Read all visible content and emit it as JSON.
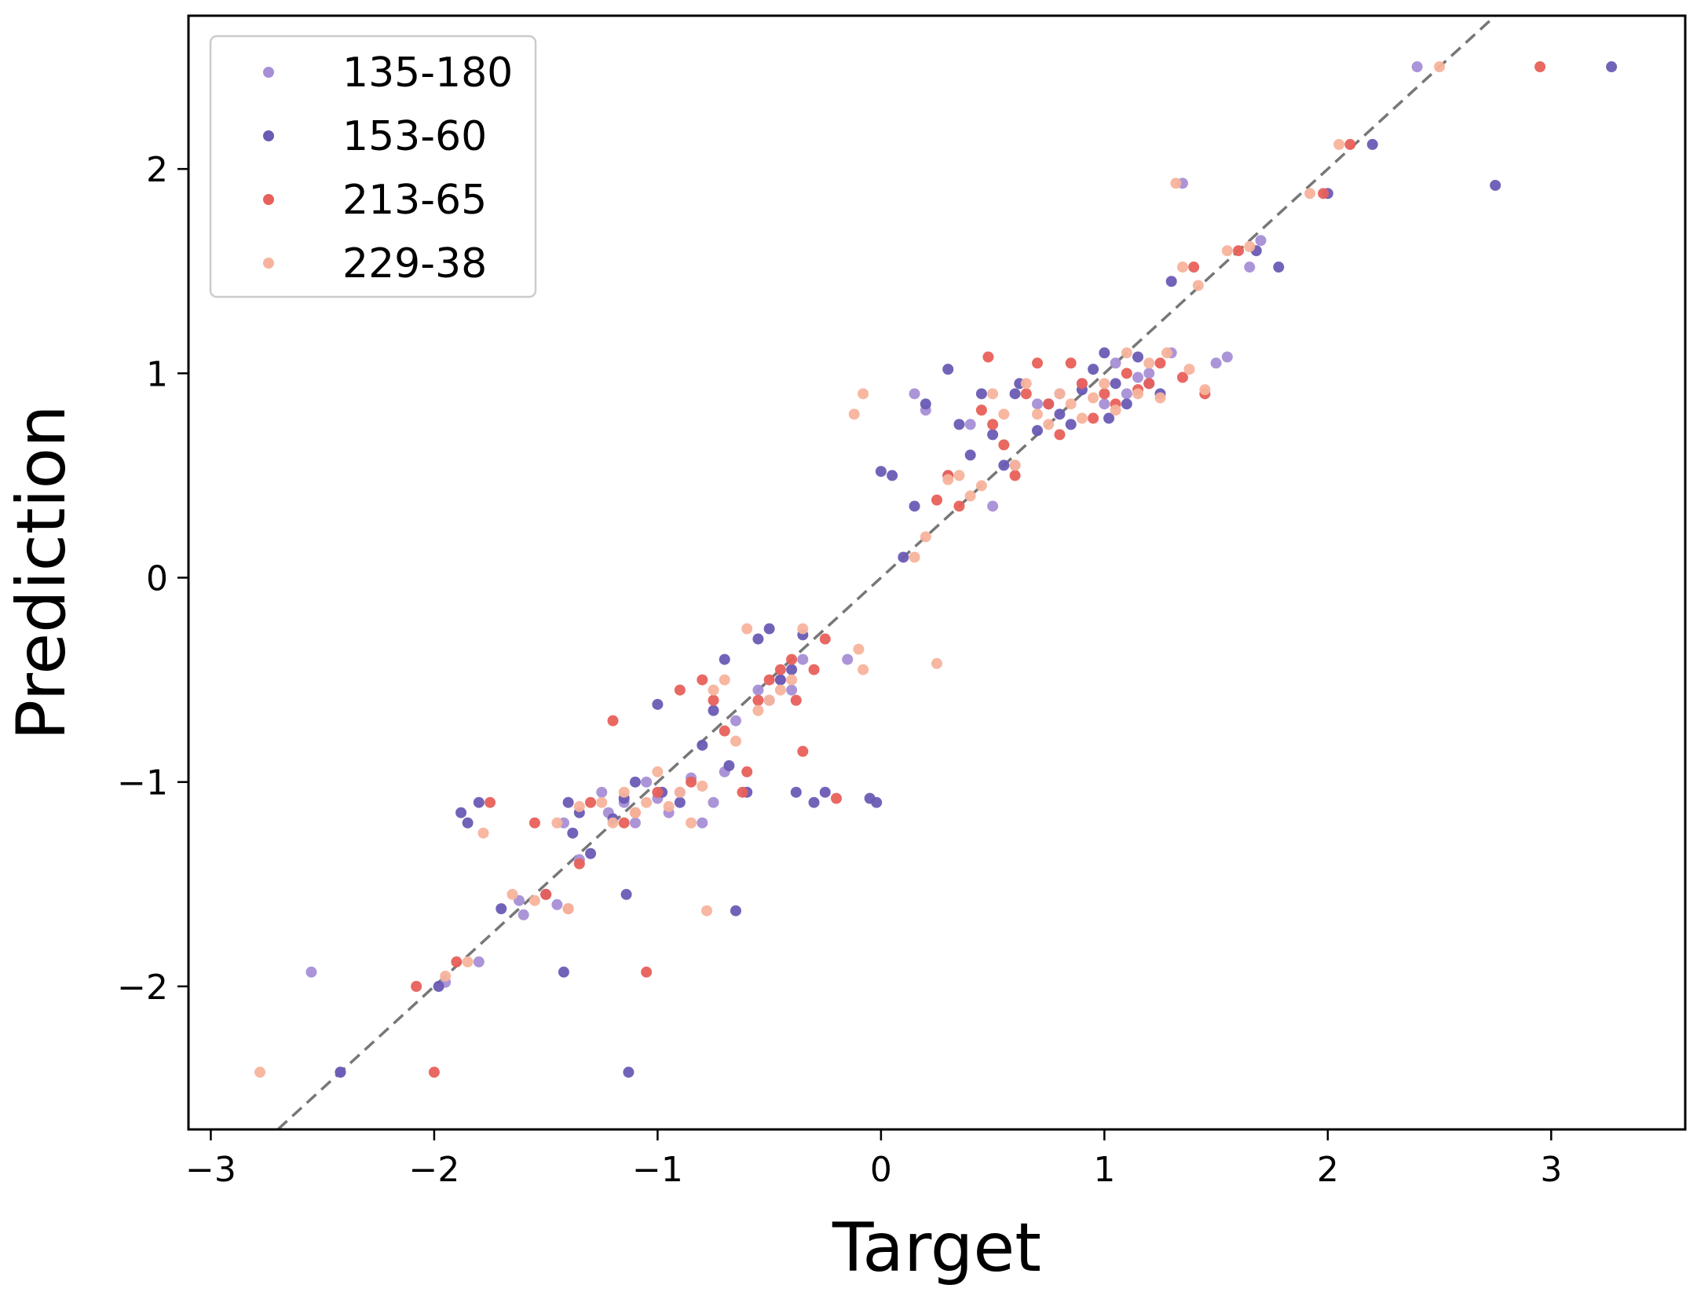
{
  "chart_data": {
    "type": "scatter",
    "title": "",
    "xlabel": "Target",
    "ylabel": "Prediction",
    "xlim": [
      -3.1,
      3.6
    ],
    "ylim": [
      -2.7,
      2.75
    ],
    "xticks": [
      -3,
      -2,
      -1,
      0,
      1,
      2,
      3
    ],
    "yticks": [
      -2,
      -1,
      0,
      1,
      2
    ],
    "xtick_labels": [
      "−3",
      "−2",
      "−1",
      "0",
      "1",
      "2",
      "3"
    ],
    "ytick_labels": [
      "−2",
      "−1",
      "0",
      "1",
      "2"
    ],
    "grid": false,
    "legend": "top-left",
    "reference_line": {
      "style": "dashed",
      "color": "#777777",
      "from": [
        -2.7,
        -2.7
      ],
      "to": [
        2.75,
        2.75
      ]
    },
    "series": [
      {
        "name": "135-180",
        "color": "#A78FD6",
        "points": [
          [
            -2.55,
            -1.93
          ],
          [
            -2.42,
            -2.42
          ],
          [
            -1.95,
            -1.98
          ],
          [
            -1.8,
            -1.88
          ],
          [
            -1.62,
            -1.58
          ],
          [
            -1.6,
            -1.65
          ],
          [
            -1.45,
            -1.6
          ],
          [
            -1.42,
            -1.2
          ],
          [
            -1.35,
            -1.38
          ],
          [
            -1.25,
            -1.05
          ],
          [
            -1.22,
            -1.15
          ],
          [
            -1.15,
            -1.1
          ],
          [
            -1.1,
            -1.2
          ],
          [
            -1.05,
            -1.0
          ],
          [
            -1.0,
            -1.08
          ],
          [
            -0.95,
            -1.15
          ],
          [
            -0.9,
            -1.05
          ],
          [
            -0.85,
            -0.98
          ],
          [
            -0.8,
            -1.2
          ],
          [
            -0.75,
            -1.1
          ],
          [
            -0.7,
            -0.95
          ],
          [
            -0.65,
            -0.7
          ],
          [
            -0.55,
            -0.55
          ],
          [
            -0.5,
            -0.6
          ],
          [
            -0.45,
            -0.5
          ],
          [
            -0.4,
            -0.55
          ],
          [
            -0.35,
            -0.4
          ],
          [
            -0.15,
            -0.4
          ],
          [
            0.15,
            0.9
          ],
          [
            0.2,
            0.82
          ],
          [
            0.3,
            0.5
          ],
          [
            0.4,
            0.75
          ],
          [
            0.5,
            0.35
          ],
          [
            0.6,
            0.55
          ],
          [
            0.7,
            0.85
          ],
          [
            0.8,
            0.9
          ],
          [
            0.9,
            0.95
          ],
          [
            1.0,
            0.85
          ],
          [
            1.05,
            1.05
          ],
          [
            1.1,
            0.9
          ],
          [
            1.15,
            0.98
          ],
          [
            1.2,
            1.0
          ],
          [
            1.3,
            1.1
          ],
          [
            1.5,
            1.05
          ],
          [
            1.55,
            1.08
          ],
          [
            1.65,
            1.52
          ],
          [
            1.7,
            1.65
          ],
          [
            1.35,
            1.93
          ],
          [
            2.4,
            2.5
          ]
        ]
      },
      {
        "name": "153-60",
        "color": "#6A5BB5",
        "points": [
          [
            -2.42,
            -2.42
          ],
          [
            -1.98,
            -2.0
          ],
          [
            -1.88,
            -1.15
          ],
          [
            -1.85,
            -1.2
          ],
          [
            -1.8,
            -1.1
          ],
          [
            -1.7,
            -1.62
          ],
          [
            -1.5,
            -1.55
          ],
          [
            -1.42,
            -1.93
          ],
          [
            -1.4,
            -1.1
          ],
          [
            -1.38,
            -1.25
          ],
          [
            -1.35,
            -1.15
          ],
          [
            -1.3,
            -1.35
          ],
          [
            -1.2,
            -1.18
          ],
          [
            -1.15,
            -1.08
          ],
          [
            -1.13,
            -2.42
          ],
          [
            -1.14,
            -1.55
          ],
          [
            -1.1,
            -1.0
          ],
          [
            -1.0,
            -0.62
          ],
          [
            -0.98,
            -1.05
          ],
          [
            -0.9,
            -1.1
          ],
          [
            -0.8,
            -0.82
          ],
          [
            -0.75,
            -0.65
          ],
          [
            -0.7,
            -0.4
          ],
          [
            -0.68,
            -0.92
          ],
          [
            -0.65,
            -1.63
          ],
          [
            -0.6,
            -1.05
          ],
          [
            -0.55,
            -0.3
          ],
          [
            -0.5,
            -0.25
          ],
          [
            -0.45,
            -0.5
          ],
          [
            -0.4,
            -0.45
          ],
          [
            -0.38,
            -1.05
          ],
          [
            -0.35,
            -0.28
          ],
          [
            -0.3,
            -1.1
          ],
          [
            -0.25,
            -1.05
          ],
          [
            -0.05,
            -1.08
          ],
          [
            -0.02,
            -1.1
          ],
          [
            0.0,
            0.52
          ],
          [
            0.05,
            0.5
          ],
          [
            0.1,
            0.1
          ],
          [
            0.15,
            0.35
          ],
          [
            0.2,
            0.85
          ],
          [
            0.3,
            1.02
          ],
          [
            0.35,
            0.75
          ],
          [
            0.4,
            0.6
          ],
          [
            0.45,
            0.9
          ],
          [
            0.5,
            0.7
          ],
          [
            0.55,
            0.55
          ],
          [
            0.6,
            0.9
          ],
          [
            0.62,
            0.95
          ],
          [
            0.7,
            0.72
          ],
          [
            0.75,
            0.85
          ],
          [
            0.8,
            0.8
          ],
          [
            0.85,
            0.75
          ],
          [
            0.9,
            0.92
          ],
          [
            0.95,
            1.02
          ],
          [
            1.0,
            1.1
          ],
          [
            1.02,
            0.78
          ],
          [
            1.05,
            0.95
          ],
          [
            1.1,
            0.85
          ],
          [
            1.15,
            1.08
          ],
          [
            1.2,
            0.95
          ],
          [
            1.25,
            0.9
          ],
          [
            1.3,
            1.45
          ],
          [
            1.68,
            1.6
          ],
          [
            1.78,
            1.52
          ],
          [
            2.2,
            2.12
          ],
          [
            2.75,
            1.92
          ],
          [
            3.27,
            2.5
          ],
          [
            2.0,
            1.88
          ]
        ]
      },
      {
        "name": "213-65",
        "color": "#E8605A",
        "points": [
          [
            -2.0,
            -2.42
          ],
          [
            -2.08,
            -2.0
          ],
          [
            -1.9,
            -1.88
          ],
          [
            -1.75,
            -1.1
          ],
          [
            -1.55,
            -1.2
          ],
          [
            -1.5,
            -1.55
          ],
          [
            -1.4,
            -1.62
          ],
          [
            -1.35,
            -1.4
          ],
          [
            -1.3,
            -1.1
          ],
          [
            -1.2,
            -0.7
          ],
          [
            -1.15,
            -1.2
          ],
          [
            -1.1,
            -1.15
          ],
          [
            -1.05,
            -1.93
          ],
          [
            -1.0,
            -1.05
          ],
          [
            -0.9,
            -0.55
          ],
          [
            -0.85,
            -1.0
          ],
          [
            -0.8,
            -0.5
          ],
          [
            -0.75,
            -0.6
          ],
          [
            -0.7,
            -0.75
          ],
          [
            -0.62,
            -1.05
          ],
          [
            -0.6,
            -0.95
          ],
          [
            -0.55,
            -0.6
          ],
          [
            -0.5,
            -0.5
          ],
          [
            -0.45,
            -0.45
          ],
          [
            -0.4,
            -0.4
          ],
          [
            -0.38,
            -0.6
          ],
          [
            -0.35,
            -0.85
          ],
          [
            -0.3,
            -0.45
          ],
          [
            -0.25,
            -0.3
          ],
          [
            -0.2,
            -1.08
          ],
          [
            0.25,
            0.38
          ],
          [
            0.3,
            0.5
          ],
          [
            0.35,
            0.35
          ],
          [
            0.45,
            0.82
          ],
          [
            0.48,
            1.08
          ],
          [
            0.5,
            0.75
          ],
          [
            0.55,
            0.65
          ],
          [
            0.6,
            0.5
          ],
          [
            0.65,
            0.9
          ],
          [
            0.7,
            1.05
          ],
          [
            0.75,
            0.85
          ],
          [
            0.8,
            0.7
          ],
          [
            0.85,
            1.05
          ],
          [
            0.9,
            0.95
          ],
          [
            0.95,
            0.78
          ],
          [
            1.0,
            0.9
          ],
          [
            1.05,
            0.85
          ],
          [
            1.1,
            1.0
          ],
          [
            1.15,
            0.92
          ],
          [
            1.2,
            0.95
          ],
          [
            1.25,
            1.05
          ],
          [
            1.35,
            0.98
          ],
          [
            1.4,
            1.52
          ],
          [
            1.45,
            0.9
          ],
          [
            1.6,
            1.6
          ],
          [
            2.1,
            2.12
          ],
          [
            1.98,
            1.88
          ],
          [
            2.95,
            2.5
          ]
        ]
      },
      {
        "name": "229-38",
        "color": "#F7B39C",
        "points": [
          [
            -2.78,
            -2.42
          ],
          [
            -1.95,
            -1.95
          ],
          [
            -1.85,
            -1.88
          ],
          [
            -1.78,
            -1.25
          ],
          [
            -1.65,
            -1.55
          ],
          [
            -1.55,
            -1.58
          ],
          [
            -1.45,
            -1.2
          ],
          [
            -1.4,
            -1.62
          ],
          [
            -1.35,
            -1.12
          ],
          [
            -1.25,
            -1.1
          ],
          [
            -1.2,
            -1.2
          ],
          [
            -1.15,
            -1.05
          ],
          [
            -1.1,
            -1.15
          ],
          [
            -1.05,
            -1.1
          ],
          [
            -1.0,
            -0.95
          ],
          [
            -0.95,
            -1.12
          ],
          [
            -0.9,
            -1.05
          ],
          [
            -0.85,
            -1.2
          ],
          [
            -0.8,
            -1.02
          ],
          [
            -0.78,
            -1.63
          ],
          [
            -0.75,
            -0.55
          ],
          [
            -0.7,
            -0.5
          ],
          [
            -0.65,
            -0.8
          ],
          [
            -0.6,
            -0.25
          ],
          [
            -0.55,
            -0.65
          ],
          [
            -0.5,
            -0.6
          ],
          [
            -0.45,
            -0.55
          ],
          [
            -0.4,
            -0.5
          ],
          [
            -0.35,
            -0.25
          ],
          [
            -0.1,
            -0.35
          ],
          [
            -0.08,
            -0.45
          ],
          [
            0.25,
            -0.42
          ],
          [
            -0.12,
            0.8
          ],
          [
            -0.08,
            0.9
          ],
          [
            0.15,
            0.1
          ],
          [
            0.2,
            0.2
          ],
          [
            0.3,
            0.48
          ],
          [
            0.35,
            0.5
          ],
          [
            0.4,
            0.4
          ],
          [
            0.45,
            0.45
          ],
          [
            0.5,
            0.9
          ],
          [
            0.55,
            0.8
          ],
          [
            0.6,
            0.55
          ],
          [
            0.65,
            0.95
          ],
          [
            0.7,
            0.8
          ],
          [
            0.75,
            0.75
          ],
          [
            0.8,
            0.9
          ],
          [
            0.85,
            0.85
          ],
          [
            0.9,
            0.78
          ],
          [
            0.95,
            0.88
          ],
          [
            1.0,
            0.95
          ],
          [
            1.05,
            0.82
          ],
          [
            1.1,
            1.1
          ],
          [
            1.15,
            0.9
          ],
          [
            1.2,
            1.05
          ],
          [
            1.25,
            0.88
          ],
          [
            1.28,
            1.1
          ],
          [
            1.38,
            1.02
          ],
          [
            1.45,
            0.92
          ],
          [
            1.55,
            1.6
          ],
          [
            1.35,
            1.52
          ],
          [
            1.42,
            1.43
          ],
          [
            1.32,
            1.93
          ],
          [
            1.65,
            1.62
          ],
          [
            1.92,
            1.88
          ],
          [
            2.05,
            2.12
          ],
          [
            2.5,
            2.5
          ]
        ]
      }
    ]
  }
}
